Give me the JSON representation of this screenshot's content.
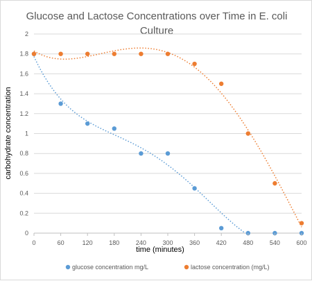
{
  "chart_data": {
    "type": "scatter",
    "title_line1": "Glucose and Lactose Concentrations over Time in E. coli",
    "title_line2": "Culture",
    "xlabel": "time (minutes)",
    "ylabel": "carbohydrate concentration",
    "x_ticks": [
      0,
      60,
      120,
      180,
      240,
      300,
      360,
      420,
      480,
      540,
      600
    ],
    "y_ticks": [
      "0",
      "0.2",
      "0.4",
      "0.6",
      "0.8",
      "1",
      "1.2",
      "1.4",
      "1.6",
      "1.8",
      "2"
    ],
    "xlim": [
      0,
      600
    ],
    "ylim": [
      0,
      2
    ],
    "grid": "horizontal",
    "legend_position": "bottom",
    "trendlines": "dotted polynomial",
    "series": [
      {
        "name": "glucose concentration mg/L",
        "color": "#5b9bd5",
        "x": [
          0,
          60,
          120,
          180,
          240,
          300,
          360,
          420,
          480,
          540,
          600
        ],
        "y": [
          1.8,
          1.3,
          1.1,
          1.05,
          0.8,
          0.8,
          0.45,
          0.05,
          0,
          0,
          0
        ]
      },
      {
        "name": "lactose concentration (mg/L)",
        "color": "#ed7d31",
        "x": [
          0,
          60,
          120,
          180,
          240,
          300,
          360,
          420,
          480,
          540,
          600
        ],
        "y": [
          1.8,
          1.8,
          1.8,
          1.8,
          1.8,
          1.8,
          1.7,
          1.5,
          1.0,
          0.5,
          0.1
        ]
      }
    ]
  }
}
